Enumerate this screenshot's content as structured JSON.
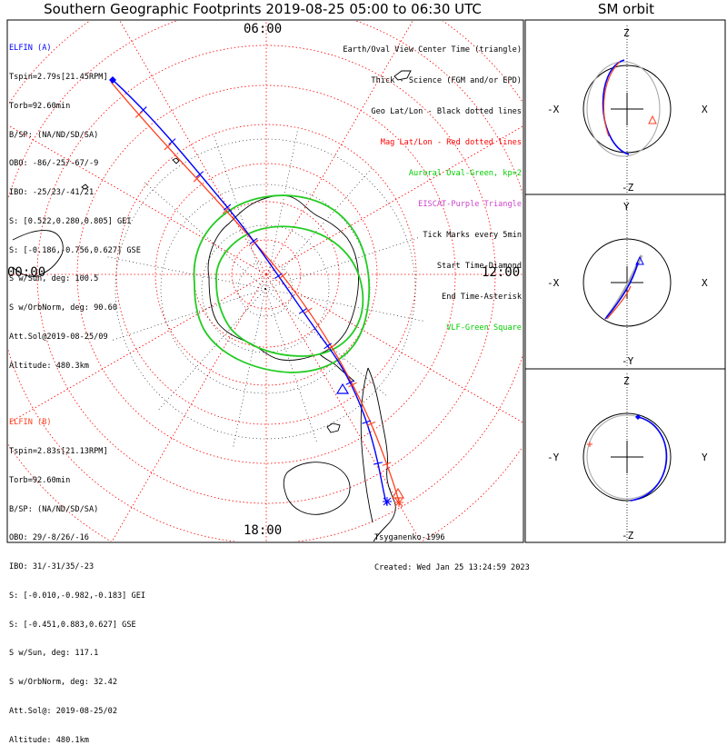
{
  "title": "Southern Geographic Footprints 2019-08-25 05:00 to 06:30 UTC",
  "sm_title": "SM orbit",
  "clock_labels": {
    "top": "06:00",
    "left": "00:00",
    "right": "12:00",
    "bottom": "18:00"
  },
  "elfin_a": {
    "name": "ELFIN (A)",
    "color": "#0000ff",
    "lines": [
      "Tspin=2.79s[21.45RPM]",
      "Torb=92.60min",
      "B/SP: (NA/ND/SD/SA)",
      "OBO: -86/-25/-67/-9",
      "IBO: -25/23/-41/21",
      "S: [0.522,0.280,0.805] GEI",
      "S: [-0.186,-0.756,0.627] GSE",
      "S w/Sun, deg: 100.5",
      "S w/OrbNorm, deg: 90.60",
      "Att.Sol@2019-08-25/09",
      "Altitude: 480.3km"
    ]
  },
  "elfin_b": {
    "name": "ELFIN (B)",
    "color": "#ff4020",
    "lines": [
      "Tspin=2.83s[21.13RPM]",
      "Torb=92.60min",
      "B/SP: (NA/ND/SD/SA)",
      "OBO: 29/-8/26/-16",
      "IBO: 31/-31/35/-23",
      "S: [-0.010,-0.982,-0.183] GEI",
      "S: [-0.451,0.883,0.627] GSE",
      "S w/Sun, deg: 117.1",
      "S w/OrbNorm, deg: 32.42",
      "Att.Sol@: 2019-08-25/02",
      "Altitude: 480.1km"
    ]
  },
  "legend": [
    {
      "text": "Earth/Oval View Center Time (triangle)",
      "color": "#000000"
    },
    {
      "text": "Thick - Science (FGM and/or EPD)",
      "color": "#000000"
    },
    {
      "text": "Geo Lat/Lon - Black dotted lines",
      "color": "#000000"
    },
    {
      "text": "Mag Lat/Lon - Red dotted lines",
      "color": "#ff0000"
    },
    {
      "text": "Auroral Oval-Green, kp=2",
      "color": "#00cc00"
    },
    {
      "text": "EISCAT-Purple Triangle",
      "color": "#cc44cc"
    },
    {
      "text": "Tick Marks every 5min",
      "color": "#000000"
    },
    {
      "text": "Start Time-Diamond",
      "color": "#000000"
    },
    {
      "text": "End Time-Asterisk",
      "color": "#000000"
    },
    {
      "text": "VLF-Green Square",
      "color": "#00cc00"
    }
  ],
  "credits": [
    "Tsyganenko-1996",
    "Created: Wed Jan 25 13:24:59 2023"
  ],
  "sm_panels": [
    {
      "top": "Z",
      "bottom": "-Z",
      "left": "-X",
      "right": "X"
    },
    {
      "top": "Y",
      "bottom": "-Y",
      "left": "-X",
      "right": "X"
    },
    {
      "top": "Z",
      "bottom": "-Z",
      "left": "-Y",
      "right": "Y"
    }
  ],
  "colors": {
    "elfin_a": "#0000ff",
    "elfin_b": "#ff4020",
    "auroral_oval": "#22cc22",
    "mag_grid": "#ff0000",
    "geo_grid": "#000000",
    "orbit_gray": "#aaaaaa"
  },
  "chart_data": {
    "type": "map",
    "projection": "south polar stereographic (MLT dial)",
    "mlt_ticks": [
      "00:00",
      "06:00",
      "12:00",
      "18:00"
    ],
    "series": [
      {
        "name": "ELFIN (A)",
        "color": "#0000ff"
      },
      {
        "name": "ELFIN (B)",
        "color": "#ff4020"
      }
    ],
    "auroral_oval_kp": 2
  }
}
